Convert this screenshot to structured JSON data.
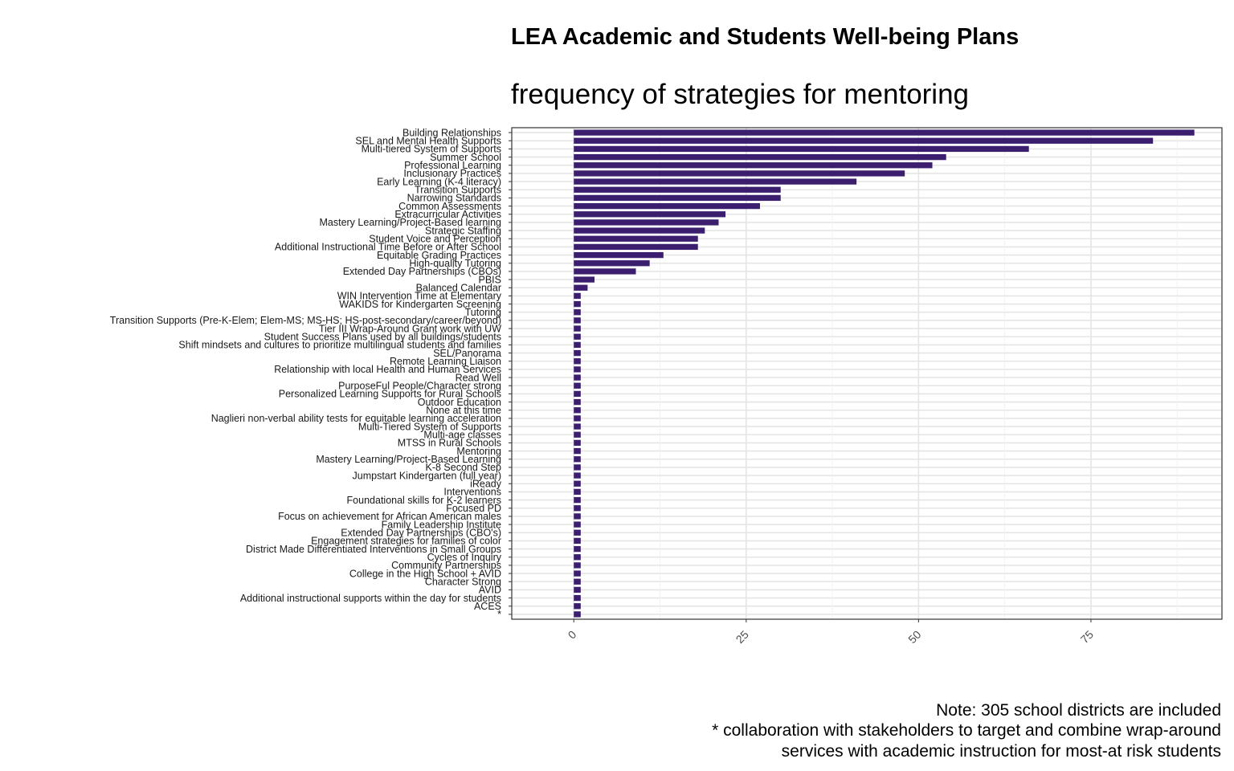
{
  "chart_data": {
    "type": "bar",
    "orientation": "horizontal",
    "title": "LEA Academic and Students Well-being Plans",
    "subtitle": "frequency of strategies for mentoring",
    "xlabel": "",
    "ylabel": "",
    "xlim": [
      -9,
      94
    ],
    "xticks": [
      "0",
      "25",
      "50",
      "75"
    ],
    "grid": true,
    "bar_color": "#3b1f6e",
    "categories": [
      "Building Relationships",
      "SEL and Mental Health Supports",
      "Multi-tiered System of Supports",
      "Summer School",
      "Professional Learning",
      "Inclusionary Practices",
      "Early Learning (K-4 literacy)",
      "Transition Supports",
      "Narrowing Standards",
      "Common Assessments",
      "Extracurricular Activities",
      "Mastery Learning/Project-Based learning",
      "Strategic Staffing",
      "Student Voice and Perception",
      "Additional Instructional Time Before or After School",
      "Equitable Grading Practices",
      "High-quality Tutoring",
      "Extended Day Partnerships (CBOs)",
      "PBIS",
      "Balanced Calendar",
      "WIN Intervention Time at Elementary",
      "WAKIDS for Kindergarten Screening",
      "Tutoring",
      "Transition Supports (Pre-K-Elem; Elem-MS; MS-HS; HS-post-secondary/career/beyond)",
      "Tier III Wrap-Around Grant work with UW",
      "Student Success Plans used by all buildings/students",
      "Shift mindsets and cultures to prioritize multilingual students and families",
      "SEL/Panorama",
      "Remote Learning Liaison",
      "Relationship with local Health and Human Services",
      "Read Well",
      "PurposeFul People/Character strong",
      "Personalized Learning Supports for Rural Schools",
      "Outdoor Education",
      "None at this time",
      "Naglieri non-verbal ability tests for equitable learning acceleration",
      "Multi-Tiered System of Supports",
      "Multi-age classes",
      "MTSS in Rural Schools",
      "Mentoring",
      "Mastery Learning/Project-Based Learning",
      "K-8 Second Step",
      "Jumpstart Kindergarten (full year)",
      "iReady",
      "Interventions",
      "Foundational skills for K-2 learners",
      "Focused PD",
      "Focus on achievement for African American males",
      "Family Leadership Institute",
      "Extended Day Partnerships (CBO's)",
      "Engagement strategies for families of color",
      "District Made Differentiated Interventions in Small Groups",
      "Cycles of Inquiry",
      "Community Partnerships",
      "College in the High School + AVID",
      "Character Strong",
      "AVID",
      "Additional instructional supports within the day for students",
      "ACES",
      "*"
    ],
    "values": [
      90,
      84,
      66,
      54,
      52,
      48,
      41,
      30,
      30,
      27,
      22,
      21,
      19,
      18,
      18,
      13,
      11,
      9,
      3,
      2,
      1,
      1,
      1,
      1,
      1,
      1,
      1,
      1,
      1,
      1,
      1,
      1,
      1,
      1,
      1,
      1,
      1,
      1,
      1,
      1,
      1,
      1,
      1,
      1,
      1,
      1,
      1,
      1,
      1,
      1,
      1,
      1,
      1,
      1,
      1,
      1,
      1,
      1,
      1,
      1
    ]
  },
  "caption": {
    "line1": "Note: 305 school districts are included",
    "line2": "* collaboration with stakeholders to target and combine wrap-around",
    "line3": "services with academic instruction for most-at risk students"
  }
}
